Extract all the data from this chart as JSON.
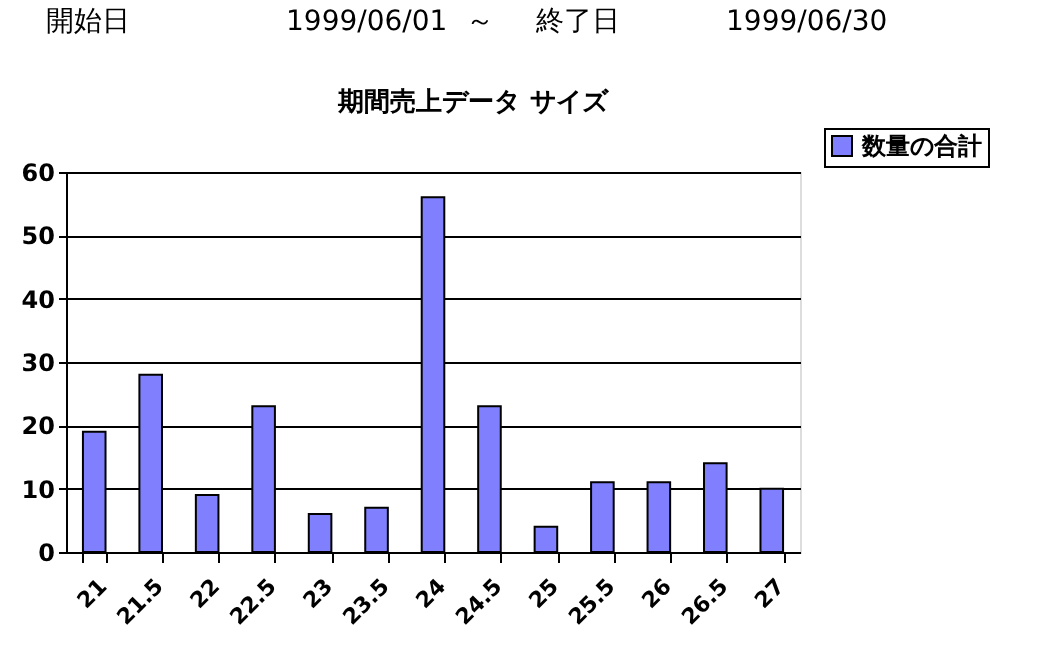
{
  "chart_data": {
    "type": "bar",
    "title": "期間売上データ サイズ",
    "annotations": [
      "開始日",
      "1999/06/01",
      "～",
      "終了日",
      "1999/06/30"
    ],
    "categories": [
      "21",
      "21.5",
      "22",
      "22.5",
      "23",
      "23.5",
      "24",
      "24.5",
      "25",
      "25.5",
      "26",
      "26.5",
      "27"
    ],
    "series": [
      {
        "name": "数量の合計",
        "color": "#8080ff",
        "values": [
          19,
          28,
          9,
          23,
          6,
          7,
          56,
          23,
          4,
          11,
          11,
          14,
          10
        ]
      }
    ],
    "ylim": [
      0,
      60
    ],
    "yticks": [
      0,
      10,
      20,
      30,
      40,
      50,
      60
    ],
    "grid": "y",
    "legend": "top right"
  }
}
